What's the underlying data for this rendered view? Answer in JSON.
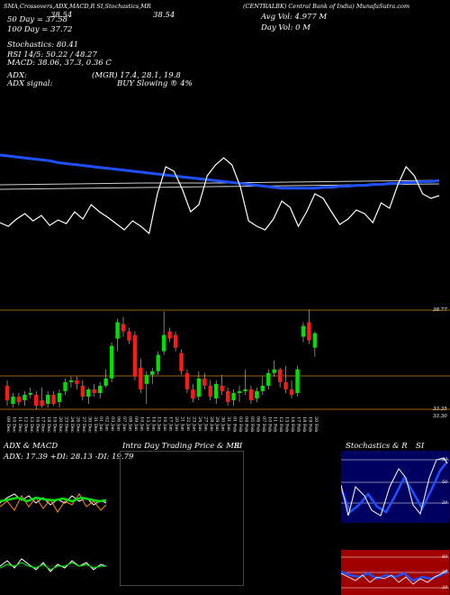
{
  "header": {
    "source": "(CENTRALBK) Central Bank of India) MunafaSutra.com",
    "title_main": "CENTRALBK",
    "indicators": "SMA,Crossovers,ADX,MACD,R SI,Stochastics,MR",
    "price_a": "38.54",
    "price_b": "38.54",
    "avg_vol": "Avg Vol: 4.977 M",
    "day_vol": "Day Vol: 0  M",
    "ma50": "50 Day = 37.58",
    "ma100": "100 Day = 37.72",
    "stoch": "Stochastics: 80.41",
    "rsi": "RSI 14/5: 50.22 / 48.27",
    "macd": "MACD: 38.06,  37.3,  0.36  C",
    "adx": "ADX:",
    "mgr": "(MGR) 17.4,  28.1,  19.8",
    "adx_signal": "ADX  signal:",
    "buy": "BUY Slowing ® 4%",
    "price_label_hi": "38.77",
    "price_label_lo_a": "33.35",
    "price_label_lo_b": "33.30"
  },
  "dates": [
    "09 Dec",
    "10 Dec",
    "11 Dec",
    "12 Dec",
    "13 Dec",
    "16 Dec",
    "17 Dec",
    "18 Dec",
    "19 Dec",
    "20 Dec",
    "23 Dec",
    "24 Dec",
    "26 Dec",
    "27 Dec",
    "30 Dec",
    "31 Dec",
    "01 Jan",
    "02 Jan",
    "03 Jan",
    "06 Jan",
    "07 Jan",
    "08 Jan",
    "09 Jan",
    "10 Jan",
    "13 Jan",
    "14 Jan",
    "15 Jan",
    "16 Jan",
    "17 Jan",
    "20 Jan",
    "21 Jan",
    "22 Jan",
    "23 Jan",
    "24 Jan",
    "27 Jan",
    "28 Jan",
    "29 Jan",
    "30 Jan",
    "31 Jan",
    "01 Feb",
    "03 Feb",
    "04 Feb",
    "05 Feb",
    "06 Feb",
    "07 Feb",
    "10 Feb",
    "11 Feb",
    "12 Feb",
    "13 Feb",
    "14 Feb",
    "17 Feb",
    "18 Feb",
    "19 Feb",
    "20 Feb"
  ],
  "panels": {
    "adx_title": "ADX  & MACD",
    "adx_values": "ADX: 17.39 +DI: 28.13 -DI: 19.79",
    "intra_title": "Intra  Day Trading Price  & MR",
    "intra_si": "SI",
    "stoch_title": "Stochastics & R",
    "stoch_si": "SI",
    "stoch_levels": [
      "80",
      "50",
      "20"
    ],
    "rsi_levels": [
      "80",
      "50",
      "20"
    ]
  },
  "colors": {
    "up": "#00e000",
    "down": "#ff1a1a",
    "sma": "#1e50ff",
    "line": "#ffffff",
    "level": "#a0620c",
    "rsi_bg": "#a00000",
    "stoch_bg": "#000060"
  },
  "chart_data": {
    "type": "candlestick",
    "title": "CENTRALBK",
    "ylim": [
      33.3,
      38.77
    ],
    "candles": [
      {
        "o": 34.6,
        "h": 34.9,
        "l": 33.5,
        "c": 33.8
      },
      {
        "o": 33.6,
        "h": 34.2,
        "l": 33.4,
        "c": 34.0
      },
      {
        "o": 34.0,
        "h": 34.2,
        "l": 33.5,
        "c": 33.7
      },
      {
        "o": 33.8,
        "h": 34.3,
        "l": 33.5,
        "c": 34.1
      },
      {
        "o": 34.1,
        "h": 34.5,
        "l": 33.9,
        "c": 34.2
      },
      {
        "o": 34.1,
        "h": 34.3,
        "l": 33.3,
        "c": 33.5
      },
      {
        "o": 33.8,
        "h": 34.5,
        "l": 33.4,
        "c": 33.5
      },
      {
        "o": 33.6,
        "h": 34.3,
        "l": 33.4,
        "c": 34.1
      },
      {
        "o": 34.1,
        "h": 34.3,
        "l": 33.5,
        "c": 33.6
      },
      {
        "o": 33.7,
        "h": 34.4,
        "l": 33.4,
        "c": 34.2
      },
      {
        "o": 34.3,
        "h": 35.0,
        "l": 34.1,
        "c": 34.8
      },
      {
        "o": 34.8,
        "h": 35.1,
        "l": 34.5,
        "c": 34.9
      },
      {
        "o": 34.9,
        "h": 35.1,
        "l": 34.4,
        "c": 34.7
      },
      {
        "o": 34.6,
        "h": 34.9,
        "l": 33.8,
        "c": 34.0
      },
      {
        "o": 34.0,
        "h": 34.5,
        "l": 33.6,
        "c": 34.4
      },
      {
        "o": 34.4,
        "h": 34.7,
        "l": 34.0,
        "c": 34.2
      },
      {
        "o": 34.2,
        "h": 34.8,
        "l": 33.9,
        "c": 34.6
      },
      {
        "o": 34.6,
        "h": 35.5,
        "l": 34.5,
        "c": 35.0
      },
      {
        "o": 35.0,
        "h": 37.0,
        "l": 34.8,
        "c": 36.8
      },
      {
        "o": 37.2,
        "h": 38.3,
        "l": 36.5,
        "c": 38.1
      },
      {
        "o": 38.0,
        "h": 38.4,
        "l": 37.3,
        "c": 37.6
      },
      {
        "o": 37.6,
        "h": 37.8,
        "l": 36.9,
        "c": 37.1
      },
      {
        "o": 37.4,
        "h": 37.6,
        "l": 34.9,
        "c": 35.1
      },
      {
        "o": 35.6,
        "h": 36.1,
        "l": 34.2,
        "c": 34.4
      },
      {
        "o": 34.7,
        "h": 35.4,
        "l": 33.6,
        "c": 35.2
      },
      {
        "o": 35.2,
        "h": 35.6,
        "l": 34.7,
        "c": 35.4
      },
      {
        "o": 35.4,
        "h": 36.5,
        "l": 35.2,
        "c": 36.3
      },
      {
        "o": 36.5,
        "h": 38.7,
        "l": 36.3,
        "c": 37.4
      },
      {
        "o": 37.6,
        "h": 37.8,
        "l": 37.0,
        "c": 37.2
      },
      {
        "o": 37.4,
        "h": 37.6,
        "l": 36.5,
        "c": 36.7
      },
      {
        "o": 36.4,
        "h": 36.6,
        "l": 35.2,
        "c": 35.4
      },
      {
        "o": 35.3,
        "h": 35.5,
        "l": 34.2,
        "c": 34.4
      },
      {
        "o": 34.4,
        "h": 34.7,
        "l": 33.7,
        "c": 33.9
      },
      {
        "o": 34.0,
        "h": 35.4,
        "l": 33.8,
        "c": 35.0
      },
      {
        "o": 35.0,
        "h": 35.3,
        "l": 34.4,
        "c": 34.6
      },
      {
        "o": 34.6,
        "h": 34.9,
        "l": 33.8,
        "c": 34.0
      },
      {
        "o": 33.9,
        "h": 34.9,
        "l": 33.6,
        "c": 34.7
      },
      {
        "o": 34.6,
        "h": 35.2,
        "l": 34.1,
        "c": 34.3
      },
      {
        "o": 34.3,
        "h": 34.5,
        "l": 33.5,
        "c": 33.7
      },
      {
        "o": 33.8,
        "h": 34.4,
        "l": 33.5,
        "c": 34.2
      },
      {
        "o": 34.2,
        "h": 34.6,
        "l": 33.7,
        "c": 34.3
      },
      {
        "o": 34.3,
        "h": 35.5,
        "l": 34.1,
        "c": 34.4
      },
      {
        "o": 34.4,
        "h": 34.6,
        "l": 33.6,
        "c": 33.8
      },
      {
        "o": 33.9,
        "h": 34.5,
        "l": 33.7,
        "c": 34.3
      },
      {
        "o": 34.3,
        "h": 35.1,
        "l": 34.1,
        "c": 34.6
      },
      {
        "o": 34.6,
        "h": 35.5,
        "l": 34.4,
        "c": 35.3
      },
      {
        "o": 35.3,
        "h": 36.0,
        "l": 35.1,
        "c": 35.5
      },
      {
        "o": 35.5,
        "h": 35.6,
        "l": 34.5,
        "c": 34.8
      },
      {
        "o": 34.8,
        "h": 35.7,
        "l": 34.2,
        "c": 34.4
      },
      {
        "o": 34.4,
        "h": 34.9,
        "l": 33.9,
        "c": 34.1
      },
      {
        "o": 34.2,
        "h": 35.7,
        "l": 34.0,
        "c": 35.5
      },
      {
        "o": 37.3,
        "h": 38.1,
        "l": 37.0,
        "c": 37.9
      },
      {
        "o": 38.1,
        "h": 38.8,
        "l": 36.9,
        "c": 37.1
      },
      {
        "o": 36.7,
        "h": 37.6,
        "l": 36.2,
        "c": 37.5
      }
    ],
    "sma_blue": [
      35.6,
      35.59,
      35.58,
      35.57,
      35.56,
      35.55,
      35.54,
      35.52,
      35.51,
      35.5,
      35.49,
      35.48,
      35.47,
      35.46,
      35.45,
      35.44,
      35.43,
      35.42,
      35.41,
      35.4,
      35.39,
      35.38,
      35.37,
      35.36,
      35.35,
      35.34,
      35.33,
      35.32,
      35.31,
      35.3,
      35.29,
      35.28,
      35.27,
      35.26,
      35.25,
      35.25,
      35.25,
      35.25,
      35.25,
      35.26,
      35.26,
      35.27,
      35.27,
      35.28,
      35.28,
      35.29,
      35.29,
      35.3,
      35.3,
      35.31,
      35.31,
      35.32,
      35.32,
      35.33
    ],
    "white_line": [
      0.82,
      0.86,
      0.78,
      0.72,
      0.8,
      0.74,
      0.85,
      0.79,
      0.83,
      0.7,
      0.78,
      0.62,
      0.7,
      0.76,
      0.83,
      0.9,
      0.8,
      0.86,
      0.94,
      0.5,
      0.2,
      0.25,
      0.45,
      0.7,
      0.62,
      0.3,
      0.18,
      0.1,
      0.18,
      0.42,
      0.8,
      0.86,
      0.9,
      0.78,
      0.58,
      0.65,
      0.86,
      0.7,
      0.5,
      0.55,
      0.7,
      0.84,
      0.78,
      0.68,
      0.72,
      0.82,
      0.6,
      0.66,
      0.4,
      0.2,
      0.3,
      0.5,
      0.55,
      0.52
    ]
  }
}
